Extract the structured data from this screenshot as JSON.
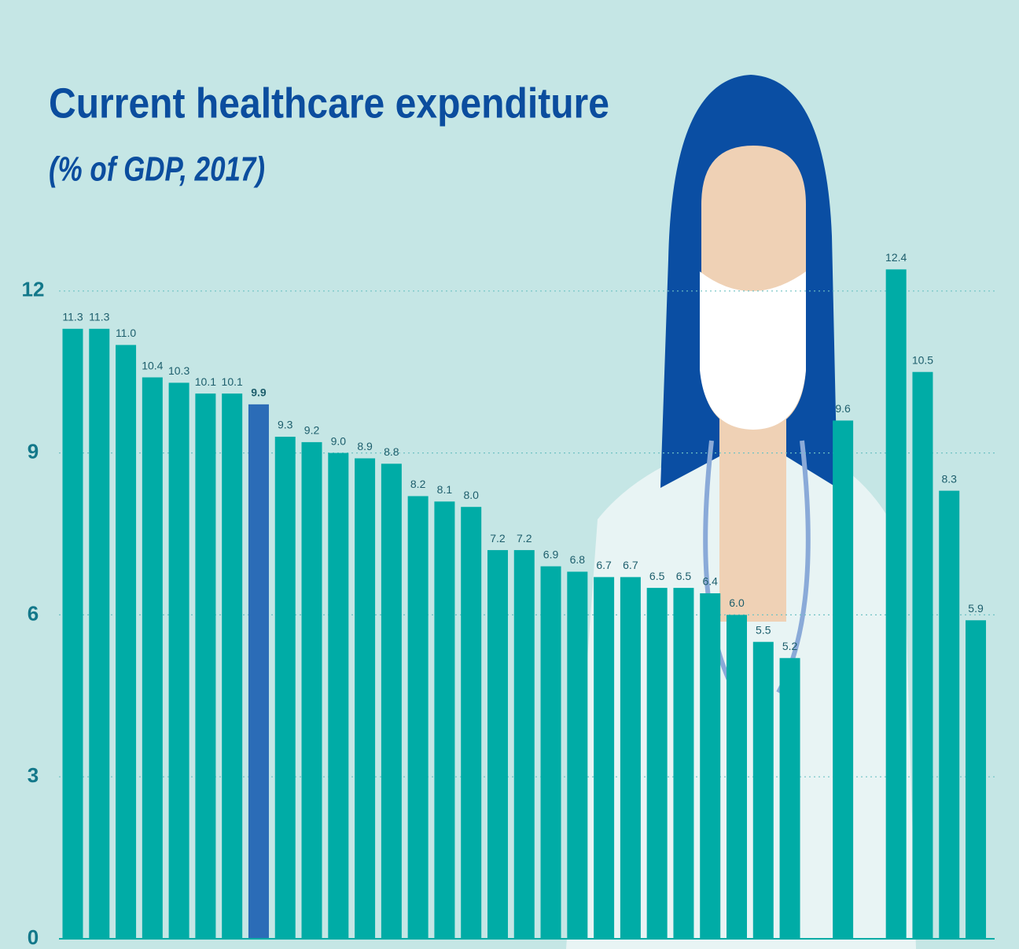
{
  "chart_data": {
    "type": "bar",
    "title": "Current healthcare expenditure",
    "subtitle": "(% of GDP, 2017)",
    "values": [
      11.3,
      11.3,
      11.0,
      10.4,
      10.3,
      10.1,
      10.1,
      9.9,
      9.3,
      9.2,
      9.0,
      8.9,
      8.8,
      8.2,
      8.1,
      8.0,
      7.2,
      7.2,
      6.9,
      6.8,
      6.7,
      6.7,
      6.5,
      6.5,
      6.4,
      6.0,
      5.5,
      5.2,
      null,
      9.6,
      null,
      12.4,
      10.5,
      8.3,
      5.9
    ],
    "value_labels": [
      "11.3",
      "11.3",
      "11.0",
      "10.4",
      "10.3",
      "10.1",
      "10.1",
      "9.9",
      "9.3",
      "9.2",
      "9.0",
      "8.9",
      "8.8",
      "8.2",
      "8.1",
      "8.0",
      "7.2",
      "7.2",
      "6.9",
      "6.8",
      "6.7",
      "6.7",
      "6.5",
      "6.5",
      "6.4",
      "6.0",
      "5.5",
      "5.2",
      null,
      "9.6",
      null,
      "12.4",
      "10.5",
      "8.3",
      "5.9"
    ],
    "colors": [
      "#00aca6",
      "#00aca6",
      "#00aca6",
      "#00aca6",
      "#00aca6",
      "#00aca6",
      "#00aca6",
      "#2b6cb7",
      "#00aca6",
      "#00aca6",
      "#00aca6",
      "#00aca6",
      "#00aca6",
      "#00aca6",
      "#00aca6",
      "#00aca6",
      "#00aca6",
      "#00aca6",
      "#00aca6",
      "#00aca6",
      "#00aca6",
      "#00aca6",
      "#00aca6",
      "#00aca6",
      "#00aca6",
      "#00aca6",
      "#00aca6",
      "#00aca6",
      null,
      "#00aca6",
      null,
      "#00aca6",
      "#00aca6",
      "#00aca6",
      "#00aca6"
    ],
    "ylim": [
      0,
      13
    ],
    "yticks": [
      0,
      3,
      6,
      9,
      12
    ],
    "grid": true
  }
}
